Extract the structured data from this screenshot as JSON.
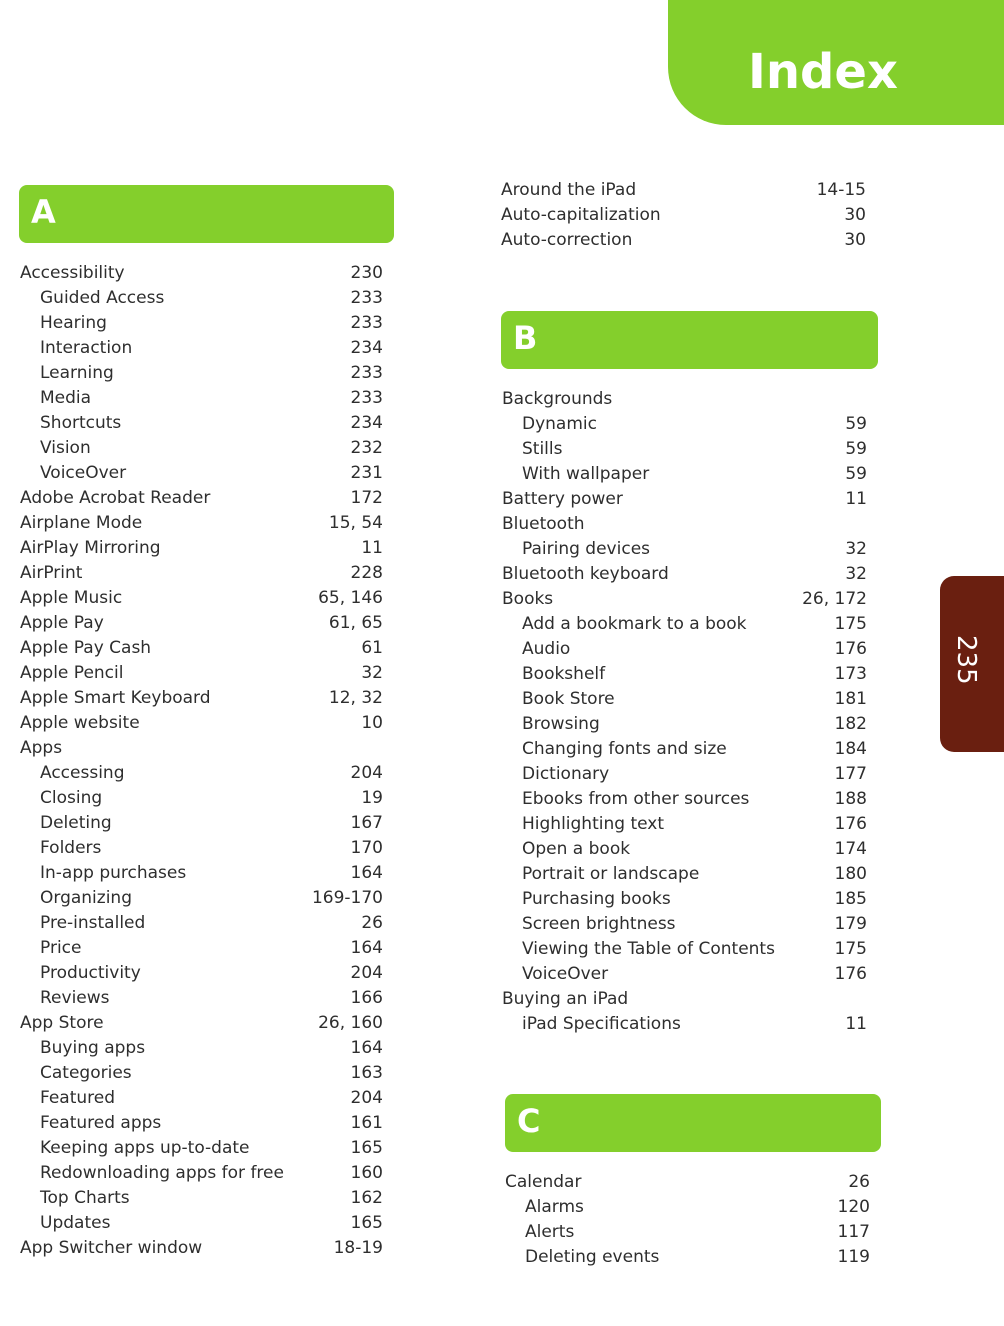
{
  "header": {
    "title": "Index",
    "page_number": "235"
  },
  "colors": {
    "accent_green": "#84cf2c",
    "page_tab_brown": "#6a1f10"
  },
  "left": {
    "letter": "A",
    "entries": [
      {
        "label": "Accessibility",
        "pages": "230",
        "sub": false
      },
      {
        "label": "Guided Access",
        "pages": "233",
        "sub": true
      },
      {
        "label": "Hearing",
        "pages": "233",
        "sub": true
      },
      {
        "label": "Interaction",
        "pages": "234",
        "sub": true
      },
      {
        "label": "Learning",
        "pages": "233",
        "sub": true
      },
      {
        "label": "Media",
        "pages": "233",
        "sub": true
      },
      {
        "label": "Shortcuts",
        "pages": "234",
        "sub": true
      },
      {
        "label": "Vision",
        "pages": "232",
        "sub": true
      },
      {
        "label": "VoiceOver",
        "pages": "231",
        "sub": true
      },
      {
        "label": "Adobe Acrobat Reader",
        "pages": "172",
        "sub": false
      },
      {
        "label": "Airplane Mode",
        "pages": "15, 54",
        "sub": false
      },
      {
        "label": "AirPlay Mirroring",
        "pages": "11",
        "sub": false
      },
      {
        "label": "AirPrint",
        "pages": "228",
        "sub": false
      },
      {
        "label": "Apple Music",
        "pages": "65, 146",
        "sub": false
      },
      {
        "label": "Apple Pay",
        "pages": "61, 65",
        "sub": false
      },
      {
        "label": "Apple Pay Cash",
        "pages": "61",
        "sub": false
      },
      {
        "label": "Apple Pencil",
        "pages": "32",
        "sub": false
      },
      {
        "label": "Apple Smart Keyboard",
        "pages": "12, 32",
        "sub": false
      },
      {
        "label": "Apple website",
        "pages": "10",
        "sub": false
      },
      {
        "label": "Apps",
        "pages": "",
        "sub": false
      },
      {
        "label": "Accessing",
        "pages": "204",
        "sub": true
      },
      {
        "label": "Closing",
        "pages": "19",
        "sub": true
      },
      {
        "label": "Deleting",
        "pages": "167",
        "sub": true
      },
      {
        "label": "Folders",
        "pages": "170",
        "sub": true
      },
      {
        "label": "In-app purchases",
        "pages": "164",
        "sub": true
      },
      {
        "label": "Organizing",
        "pages": "169-170",
        "sub": true
      },
      {
        "label": "Pre-installed",
        "pages": "26",
        "sub": true
      },
      {
        "label": "Price",
        "pages": "164",
        "sub": true
      },
      {
        "label": "Productivity",
        "pages": "204",
        "sub": true
      },
      {
        "label": "Reviews",
        "pages": "166",
        "sub": true
      },
      {
        "label": "App Store",
        "pages": "26, 160",
        "sub": false
      },
      {
        "label": "Buying apps",
        "pages": "164",
        "sub": true
      },
      {
        "label": "Categories",
        "pages": "163",
        "sub": true
      },
      {
        "label": "Featured",
        "pages": "204",
        "sub": true
      },
      {
        "label": "Featured apps",
        "pages": "161",
        "sub": true
      },
      {
        "label": "Keeping apps up-to-date",
        "pages": "165",
        "sub": true
      },
      {
        "label": "Redownloading apps for free",
        "pages": "160",
        "sub": true
      },
      {
        "label": "Top Charts",
        "pages": "162",
        "sub": true
      },
      {
        "label": "Updates",
        "pages": "165",
        "sub": true
      },
      {
        "label": "App Switcher window",
        "pages": "18-19",
        "sub": false
      }
    ]
  },
  "right": {
    "continued": [
      {
        "label": "Around the iPad",
        "pages": "14-15",
        "sub": false
      },
      {
        "label": "Auto-capitalization",
        "pages": "30",
        "sub": false
      },
      {
        "label": "Auto-correction",
        "pages": "30",
        "sub": false
      }
    ],
    "b": {
      "letter": "B",
      "entries": [
        {
          "label": "Backgrounds",
          "pages": "",
          "sub": false
        },
        {
          "label": "Dynamic",
          "pages": "59",
          "sub": true
        },
        {
          "label": "Stills",
          "pages": "59",
          "sub": true
        },
        {
          "label": "With wallpaper",
          "pages": "59",
          "sub": true
        },
        {
          "label": "Battery power",
          "pages": "11",
          "sub": false
        },
        {
          "label": "Bluetooth",
          "pages": "",
          "sub": false
        },
        {
          "label": "Pairing devices",
          "pages": "32",
          "sub": true
        },
        {
          "label": "Bluetooth keyboard",
          "pages": "32",
          "sub": false
        },
        {
          "label": "Books",
          "pages": "26, 172",
          "sub": false
        },
        {
          "label": "Add a bookmark to a book",
          "pages": "175",
          "sub": true
        },
        {
          "label": "Audio",
          "pages": "176",
          "sub": true
        },
        {
          "label": "Bookshelf",
          "pages": "173",
          "sub": true
        },
        {
          "label": "Book Store",
          "pages": "181",
          "sub": true
        },
        {
          "label": "Browsing",
          "pages": "182",
          "sub": true
        },
        {
          "label": "Changing fonts and size",
          "pages": "184",
          "sub": true
        },
        {
          "label": "Dictionary",
          "pages": "177",
          "sub": true
        },
        {
          "label": "Ebooks from other sources",
          "pages": "188",
          "sub": true
        },
        {
          "label": "Highlighting text",
          "pages": "176",
          "sub": true
        },
        {
          "label": "Open a book",
          "pages": "174",
          "sub": true
        },
        {
          "label": "Portrait or landscape",
          "pages": "180",
          "sub": true
        },
        {
          "label": "Purchasing books",
          "pages": "185",
          "sub": true
        },
        {
          "label": "Screen brightness",
          "pages": "179",
          "sub": true
        },
        {
          "label": "Viewing the Table of Contents",
          "pages": "175",
          "sub": true
        },
        {
          "label": "VoiceOver",
          "pages": "176",
          "sub": true
        },
        {
          "label": "Buying an iPad",
          "pages": "",
          "sub": false
        },
        {
          "label": "iPad Specifications",
          "pages": "11",
          "sub": true
        }
      ]
    },
    "c": {
      "letter": "C",
      "entries": [
        {
          "label": "Calendar",
          "pages": "26",
          "sub": false
        },
        {
          "label": "Alarms",
          "pages": "120",
          "sub": true
        },
        {
          "label": "Alerts",
          "pages": "117",
          "sub": true
        },
        {
          "label": "Deleting events",
          "pages": "119",
          "sub": true
        }
      ]
    }
  }
}
